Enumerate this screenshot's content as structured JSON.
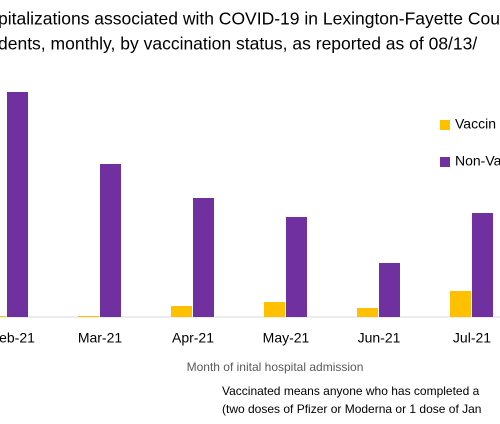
{
  "chart_data": {
    "type": "bar",
    "title": "pitalizations associated with COVID-19 in Lexington-Fayette Cou",
    "subtitle": "dents, monthly, by vaccination status, as reported as of  08/13/",
    "x_label": "Month of inital hospital admission",
    "notes": [
      "Vaccinated means anyone who has completed a",
      "(two doses of Pfizer or Moderna or 1 dose of Jan"
    ],
    "categories": [
      "eb-21",
      "Mar-21",
      "Apr-21",
      "May-21",
      "Jun-21",
      "Jul-21"
    ],
    "series": [
      {
        "name": "Vaccin",
        "color": "#ffc000",
        "values": [
          1,
          1,
          11,
          15,
          9,
          26
        ]
      },
      {
        "name": "Non-Va",
        "color": "#7030a0",
        "values": [
          225,
          153,
          119,
          100,
          54,
          104
        ]
      }
    ]
  }
}
